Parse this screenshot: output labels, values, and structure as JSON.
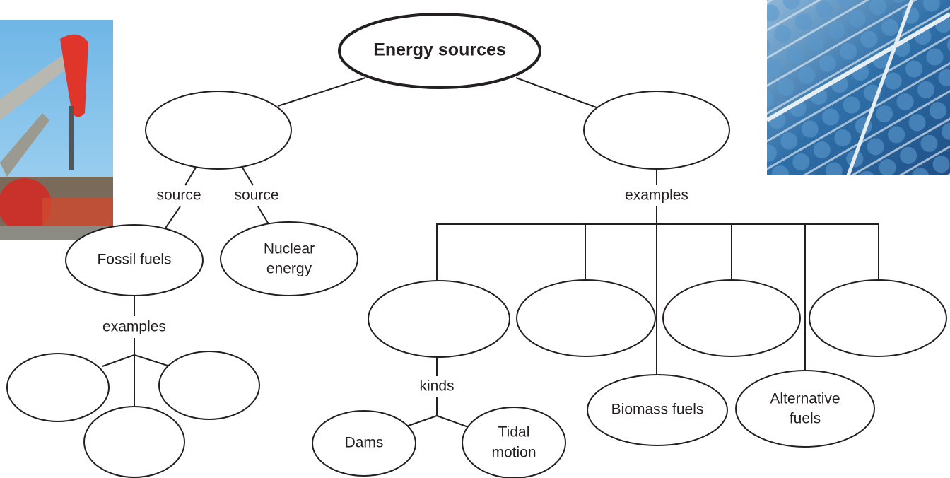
{
  "root": {
    "label": "Energy sources"
  },
  "nodes": [
    {
      "lines": [
        "Fossil fuels"
      ]
    },
    {
      "lines": [
        "Nuclear",
        "energy"
      ]
    },
    {
      "lines": [
        "Dams"
      ]
    },
    {
      "lines": [
        "Tidal",
        "motion"
      ]
    },
    {
      "lines": [
        "Biomass fuels"
      ]
    },
    {
      "lines": [
        "Alternative",
        "fuels"
      ]
    }
  ],
  "edge_labels": [
    "source",
    "source",
    "examples",
    "examples",
    "kinds"
  ]
}
